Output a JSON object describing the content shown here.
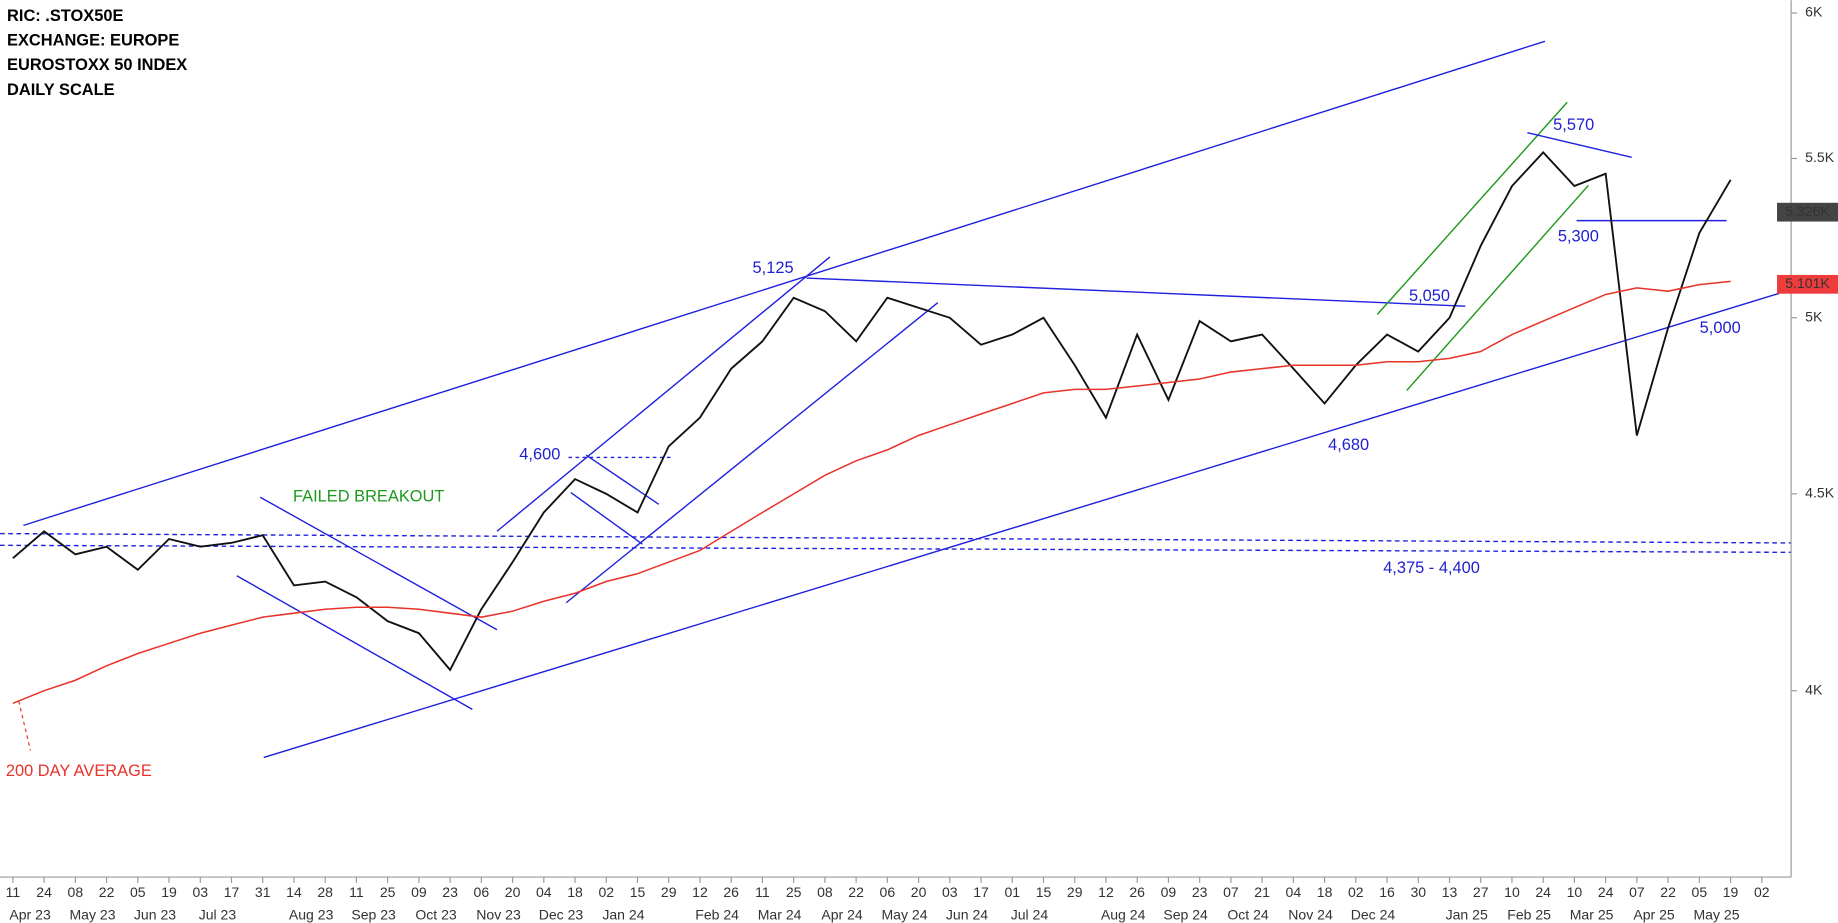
{
  "chart_data": {
    "type": "line",
    "header": [
      "RIC: .STOX50E",
      "EXCHANGE: EUROPE",
      "EUROSTOXX 50 INDEX",
      "DAILY SCALE"
    ],
    "categories": [
      "11",
      "24",
      "08",
      "22",
      "05",
      "19",
      "03",
      "17",
      "31",
      "14",
      "28",
      "11",
      "25",
      "09",
      "23",
      "06",
      "20",
      "04",
      "18",
      "02",
      "15",
      "29",
      "12",
      "26",
      "11",
      "25",
      "08",
      "22",
      "06",
      "20",
      "03",
      "17",
      "01",
      "15",
      "29",
      "12",
      "26",
      "09",
      "23",
      "07",
      "21",
      "04",
      "18",
      "02",
      "16",
      "30",
      "13",
      "27",
      "10",
      "24",
      "10",
      "24",
      "07",
      "22",
      "05",
      "19",
      "02"
    ],
    "months": [
      "Apr 23",
      null,
      "May 23",
      null,
      "Jun 23",
      null,
      "Jul 23",
      null,
      null,
      "Aug 23",
      null,
      "Sep 23",
      null,
      "Oct 23",
      null,
      "Nov 23",
      null,
      "Dec 23",
      null,
      "Jan 24",
      null,
      null,
      "Feb 24",
      null,
      "Mar 24",
      null,
      "Apr 24",
      null,
      "May 24",
      null,
      "Jun 24",
      null,
      "Jul 24",
      null,
      null,
      "Aug 24",
      null,
      "Sep 24",
      null,
      "Oct 24",
      null,
      "Nov 24",
      null,
      "Dec 24",
      null,
      null,
      "Jan 25",
      null,
      "Feb 25",
      null,
      "Mar 25",
      null,
      "Apr 25",
      null,
      "May 25",
      null,
      null
    ],
    "series": [
      {
        "name": "EUROSTOXX 50 INDEX",
        "color": "#111111",
        "values": [
          4330,
          4400,
          4340,
          4360,
          4300,
          4380,
          4360,
          4370,
          4390,
          4260,
          4270,
          4230,
          4170,
          4140,
          4050,
          4200,
          4320,
          4450,
          4540,
          4500,
          4450,
          4630,
          4710,
          4850,
          4930,
          5060,
          5020,
          4930,
          5060,
          5030,
          5000,
          4920,
          4950,
          5000,
          4860,
          4710,
          4950,
          4760,
          4990,
          4930,
          4950,
          4850,
          4750,
          4860,
          4950,
          4900,
          5000,
          5220,
          5410,
          5520,
          5410,
          5450,
          4660,
          4970,
          5260,
          5430,
          null
        ]
      },
      {
        "name": "200 DAY AVERAGE",
        "color": "#e8322a",
        "values": [
          3970,
          4000,
          4025,
          4060,
          4090,
          4115,
          4140,
          4160,
          4180,
          4190,
          4200,
          4205,
          4205,
          4200,
          4190,
          4180,
          4195,
          4220,
          4240,
          4270,
          4290,
          4320,
          4350,
          4400,
          4450,
          4500,
          4550,
          4590,
          4620,
          4660,
          4690,
          4720,
          4750,
          4780,
          4790,
          4790,
          4800,
          4810,
          4820,
          4840,
          4850,
          4860,
          4860,
          4860,
          4870,
          4870,
          4880,
          4900,
          4950,
          4990,
          5030,
          5070,
          5090,
          5080,
          5100,
          5110,
          null
        ]
      }
    ],
    "last_close": {
      "value": 5326,
      "label": "5.326K"
    },
    "last_average": {
      "value": 5101,
      "label": "5.101K"
    },
    "ylim": [
      3578,
      6046
    ],
    "log_scale": true,
    "yticks": [
      {
        "value": 4000,
        "label": "4K"
      },
      {
        "value": 4500,
        "label": "4.5K"
      },
      {
        "value": 5000,
        "label": "5K"
      },
      {
        "value": 5500,
        "label": "5.5K"
      },
      {
        "value": 6000,
        "label": "6K"
      }
    ],
    "annotations": [
      "FAILED BREAKOUT",
      "200 DAY AVERAGE",
      "5,125",
      "4,600",
      "5,050",
      "5,570",
      "5,300",
      "5,000",
      "4,680",
      "4,375 - 4,400"
    ]
  }
}
